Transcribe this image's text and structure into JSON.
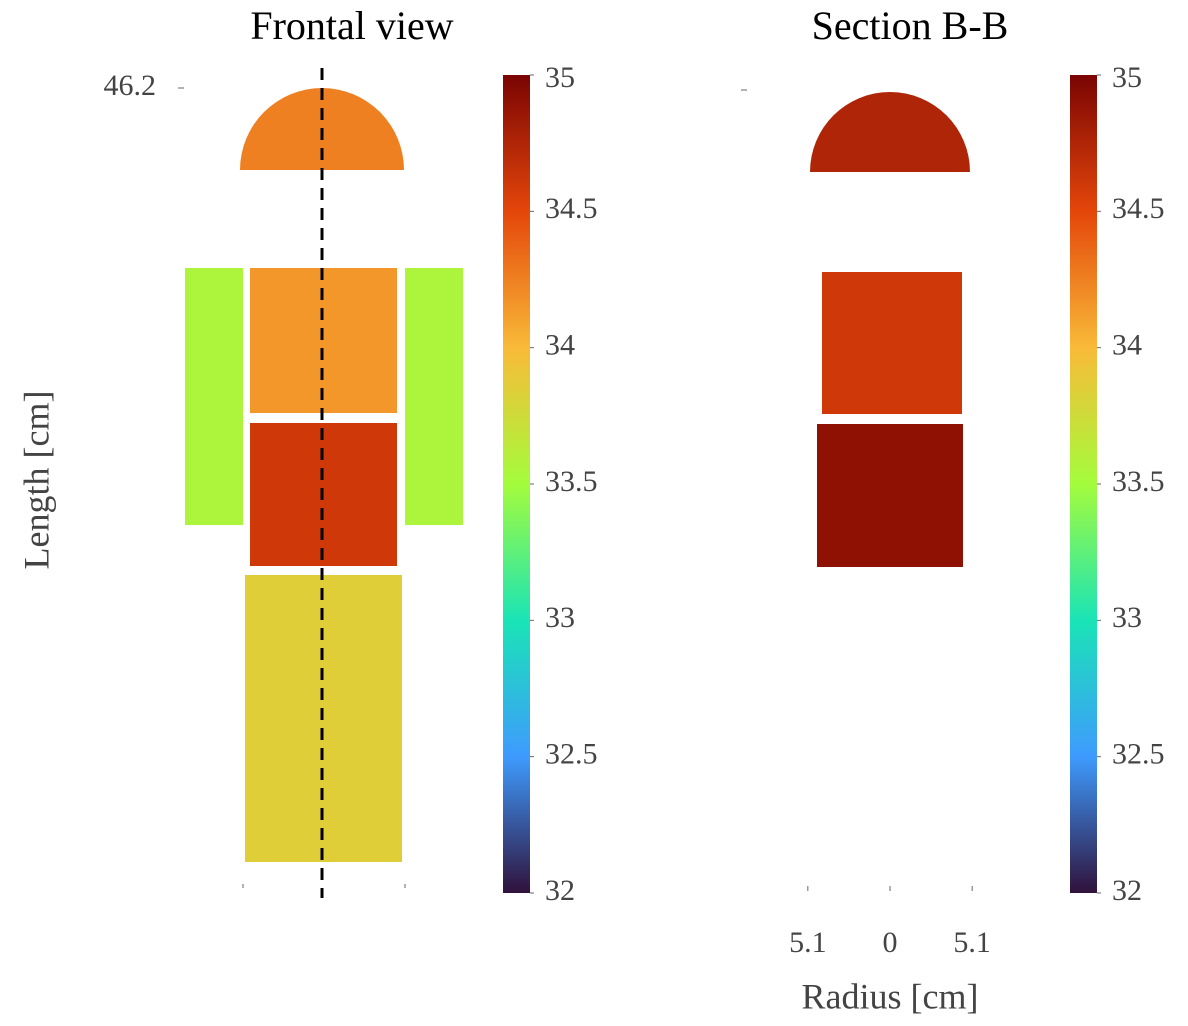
{
  "chart_data": [
    {
      "type": "segment-map",
      "title": "Frontal view",
      "ylabel": "Length [cm]",
      "ylim": [
        0,
        46.2
      ],
      "yticks": [
        46.2
      ],
      "values": [
        34.25,
        33.55,
        34.15,
        33.55,
        34.6,
        33.85
      ],
      "colorbar": {
        "clim": [
          32,
          35
        ],
        "ticks": [
          32,
          32.5,
          33,
          33.5,
          34,
          34.5,
          35
        ],
        "colormap": [
          "#30123b",
          "#3e9bfe",
          "#1ae4b6",
          "#a4fc3c",
          "#f9ba38",
          "#e4460a",
          "#7a0403"
        ]
      }
    },
    {
      "type": "segment-map",
      "title": "Section B-B",
      "xlabel": "Radius [cm]",
      "xlim": [
        -9,
        9
      ],
      "xticks": [
        {
          "value": -5.1,
          "label": "5.1"
        },
        0,
        5.1
      ],
      "values": [
        34.75,
        34.6,
        34.9
      ],
      "colorbar": {
        "clim": [
          32,
          35
        ],
        "ticks": [
          32,
          32.5,
          33,
          33.5,
          34,
          34.5,
          35
        ],
        "colormap": [
          "#30123b",
          "#3e9bfe",
          "#1ae4b6",
          "#a4fc3c",
          "#f9ba38",
          "#e4460a",
          "#7a0403"
        ]
      }
    }
  ]
}
